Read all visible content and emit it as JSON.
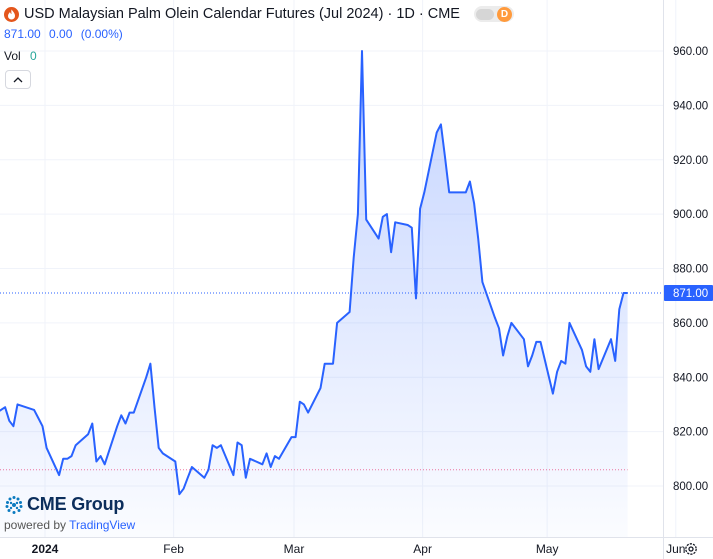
{
  "header": {
    "title": "USD Malaysian Palm Olein Calendar Futures (Jul 2024) · 1D · CME",
    "quote": {
      "price": "871.00",
      "change": "0.00",
      "change_pct": "(0.00%)"
    },
    "volume": {
      "label": "Vol",
      "value": "0"
    },
    "badge": "D"
  },
  "branding": {
    "logo": "CME Group",
    "powered_by": "powered by",
    "tradingview": "TradingView"
  },
  "colors": {
    "line": "#2962ff",
    "fill": "#2962ff",
    "grid": "#f0f3fa",
    "axis_text": "#131722",
    "last_price_bg": "#2962ff",
    "reference_line": "#e91e63"
  },
  "chart_data": {
    "type": "area",
    "title": "USD Malaysian Palm Olein Calendar Futures (Jul 2024) · 1D · CME",
    "x_tick_labels": [
      "2024",
      "Feb",
      "Mar",
      "Apr",
      "May",
      "Jun"
    ],
    "y_tick_labels": [
      "800.00",
      "820.00",
      "840.00",
      "860.00",
      "880.00",
      "900.00",
      "920.00",
      "940.00",
      "960.00"
    ],
    "ylim": [
      784,
      968
    ],
    "last_price": 871,
    "last_price_label": "871.00",
    "reference_value": 806,
    "x": [
      "2023-12-21",
      "2023-12-22",
      "2023-12-26",
      "2023-12-27",
      "2023-12-28",
      "2023-12-29",
      "2024-01-02",
      "2024-01-03",
      "2024-01-04",
      "2024-01-05",
      "2024-01-08",
      "2024-01-09",
      "2024-01-10",
      "2024-01-11",
      "2024-01-12",
      "2024-01-15",
      "2024-01-16",
      "2024-01-17",
      "2024-01-18",
      "2024-01-19",
      "2024-01-22",
      "2024-01-23",
      "2024-01-24",
      "2024-01-25",
      "2024-01-26",
      "2024-01-29",
      "2024-01-30",
      "2024-01-31",
      "2024-02-01",
      "2024-02-02",
      "2024-02-05",
      "2024-02-06",
      "2024-02-07",
      "2024-02-08",
      "2024-02-09",
      "2024-02-12",
      "2024-02-13",
      "2024-02-14",
      "2024-02-15",
      "2024-02-16",
      "2024-02-19",
      "2024-02-20",
      "2024-02-21",
      "2024-02-22",
      "2024-02-23",
      "2024-02-26",
      "2024-02-27",
      "2024-02-28",
      "2024-02-29",
      "2024-03-01",
      "2024-03-04",
      "2024-03-05",
      "2024-03-06",
      "2024-03-07",
      "2024-03-08",
      "2024-03-11",
      "2024-03-12",
      "2024-03-13",
      "2024-03-14",
      "2024-03-15",
      "2024-03-18",
      "2024-03-19",
      "2024-03-20",
      "2024-03-21",
      "2024-03-22",
      "2024-03-25",
      "2024-03-26",
      "2024-03-27",
      "2024-03-28",
      "2024-03-29",
      "2024-04-01",
      "2024-04-02",
      "2024-04-03",
      "2024-04-04",
      "2024-04-05",
      "2024-04-08",
      "2024-04-09",
      "2024-04-10",
      "2024-04-11",
      "2024-04-12",
      "2024-04-15",
      "2024-04-16",
      "2024-04-17",
      "2024-04-18",
      "2024-04-19",
      "2024-04-22",
      "2024-04-23",
      "2024-04-24",
      "2024-04-25",
      "2024-04-26",
      "2024-04-29",
      "2024-04-30",
      "2024-05-01",
      "2024-05-02",
      "2024-05-03",
      "2024-05-06",
      "2024-05-07",
      "2024-05-08",
      "2024-05-09",
      "2024-05-10",
      "2024-05-13",
      "2024-05-14",
      "2024-05-15",
      "2024-05-16",
      "2024-05-17",
      "2024-05-20",
      "2024-05-21",
      "2024-05-22",
      "2024-05-23",
      "2024-05-24"
    ],
    "values": [
      822,
      825,
      829,
      824,
      822,
      830,
      828,
      825,
      822,
      814,
      804,
      810,
      810,
      811,
      815,
      819,
      823,
      809,
      811,
      808,
      822,
      826,
      823,
      827,
      827,
      840,
      845,
      829,
      814,
      812,
      809,
      797,
      799,
      803,
      807,
      803,
      806,
      815,
      814,
      815,
      804,
      816,
      815,
      803,
      810,
      808,
      812,
      807,
      811,
      810,
      818,
      818,
      831,
      830,
      827,
      836,
      845,
      845,
      845,
      860,
      864,
      884,
      900,
      960,
      898,
      891,
      899,
      900,
      886,
      897,
      896,
      895,
      869,
      902,
      908,
      930,
      933,
      921,
      908,
      908,
      908,
      912,
      904,
      891,
      875,
      862,
      858,
      848,
      855,
      860,
      854,
      844,
      848,
      853,
      853,
      834,
      842,
      846,
      845,
      860,
      850,
      844,
      842,
      854,
      843,
      854,
      846,
      865,
      871,
      871
    ],
    "series": [
      {
        "values_ref": "values"
      }
    ]
  }
}
